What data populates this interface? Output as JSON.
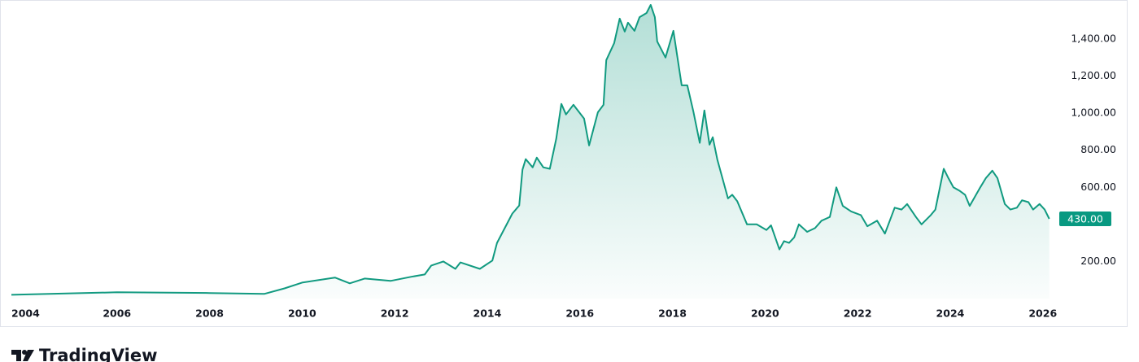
{
  "chart_data": {
    "type": "area",
    "color": "#119a80",
    "x": [
      2003.72,
      2006.0,
      2008.0,
      2009.18,
      2009.62,
      2010.0,
      2010.71,
      2011.03,
      2011.35,
      2011.91,
      2012.35,
      2012.65,
      2012.79,
      2013.05,
      2013.31,
      2013.42,
      2013.84,
      2014.11,
      2014.21,
      2014.54,
      2014.69,
      2014.76,
      2014.83,
      2014.98,
      2015.07,
      2015.21,
      2015.35,
      2015.49,
      2015.6,
      2015.7,
      2015.86,
      2016.09,
      2016.2,
      2016.39,
      2016.51,
      2016.57,
      2016.74,
      2016.86,
      2016.97,
      2017.04,
      2017.18,
      2017.29,
      2017.44,
      2017.53,
      2017.62,
      2017.67,
      2017.85,
      2018.02,
      2018.2,
      2018.32,
      2018.45,
      2018.59,
      2018.69,
      2018.8,
      2018.87,
      2018.97,
      2019.2,
      2019.29,
      2019.4,
      2019.61,
      2019.82,
      2020.03,
      2020.13,
      2020.31,
      2020.41,
      2020.52,
      2020.63,
      2020.73,
      2020.91,
      2021.08,
      2021.22,
      2021.4,
      2021.54,
      2021.68,
      2021.86,
      2022.07,
      2022.21,
      2022.42,
      2022.59,
      2022.8,
      2022.95,
      2023.07,
      2023.26,
      2023.38,
      2023.58,
      2023.68,
      2023.86,
      2023.96,
      2024.07,
      2024.21,
      2024.32,
      2024.42,
      2024.65,
      2024.77,
      2024.91,
      2025.02,
      2025.18,
      2025.3,
      2025.44,
      2025.55,
      2025.69,
      2025.79,
      2025.93,
      2026.04,
      2026.14
    ],
    "values": [
      20,
      34,
      30,
      25,
      55,
      86,
      113,
      82,
      108,
      95,
      117,
      130,
      178,
      200,
      160,
      195,
      160,
      205,
      300,
      458,
      502,
      695,
      752,
      708,
      760,
      708,
      700,
      862,
      1050,
      993,
      1045,
      971,
      826,
      1005,
      1045,
      1286,
      1378,
      1510,
      1440,
      1488,
      1444,
      1518,
      1540,
      1584,
      1518,
      1387,
      1300,
      1444,
      1150,
      1150,
      1010,
      840,
      1015,
      830,
      870,
      750,
      540,
      560,
      525,
      400,
      400,
      370,
      395,
      265,
      310,
      300,
      330,
      400,
      360,
      380,
      420,
      440,
      600,
      500,
      470,
      450,
      390,
      420,
      350,
      490,
      480,
      510,
      440,
      400,
      450,
      480,
      700,
      650,
      600,
      580,
      560,
      500,
      600,
      650,
      690,
      650,
      510,
      480,
      490,
      530,
      520,
      480,
      510,
      480,
      430
    ],
    "xlim": [
      2003.72,
      2026.18
    ],
    "ylim": [
      0,
      1606
    ],
    "xticks": [
      2004,
      2006,
      2008,
      2010,
      2012,
      2014,
      2016,
      2018,
      2020,
      2022,
      2024,
      2026
    ],
    "yticks": [
      {
        "value": 200,
        "label": "200.00"
      },
      {
        "value": 600,
        "label": "600.00"
      },
      {
        "value": 800,
        "label": "800.00"
      },
      {
        "value": 1000,
        "label": "1,000.00"
      },
      {
        "value": 1200,
        "label": "1,200.00"
      },
      {
        "value": 1400,
        "label": "1,400.00"
      }
    ],
    "last_price": {
      "value": 430,
      "label": "430.00"
    },
    "brand": "TradingView"
  }
}
